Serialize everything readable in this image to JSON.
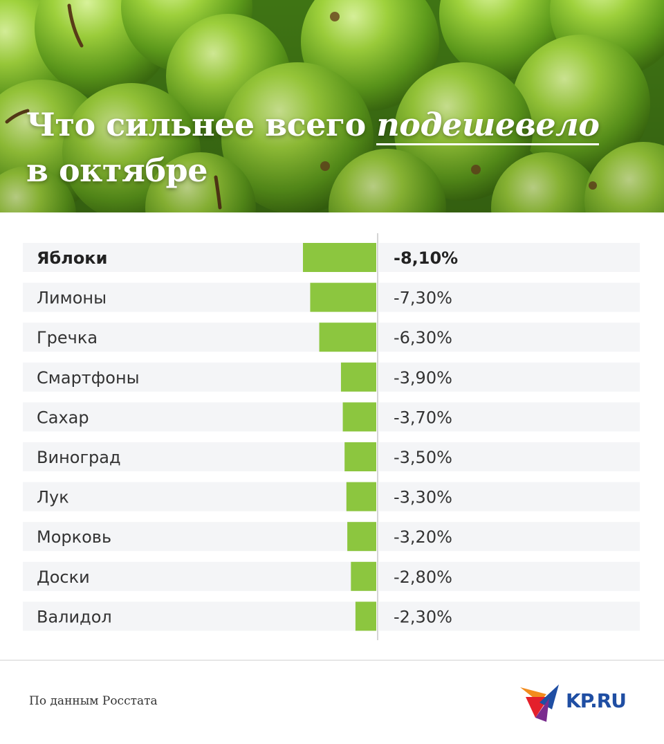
{
  "header": {
    "title_prefix": "Что сильнее всего ",
    "title_accent": "подешевело",
    "title_line2": "в октябре"
  },
  "chart_data": {
    "type": "bar",
    "orientation": "horizontal",
    "categories": [
      "Яблоки",
      "Лимоны",
      "Гречка",
      "Смартфоны",
      "Сахар",
      "Виноград",
      "Лук",
      "Морковь",
      "Доски",
      "Валидол"
    ],
    "values": [
      -8.1,
      -7.3,
      -6.3,
      -3.9,
      -3.7,
      -3.5,
      -3.3,
      -3.2,
      -2.8,
      -2.3
    ],
    "value_labels": [
      "-8,10%",
      "-7,30%",
      "-6,30%",
      "-3,90%",
      "-3,70%",
      "-3,50%",
      "-3,30%",
      "-3,20%",
      "-2,80%",
      "-2,30%"
    ],
    "unit": "%",
    "highlight_index": 0,
    "bar_color": "#8cc63f",
    "row_bg_color": "#f4f5f7"
  },
  "footer": {
    "source": "По данным Росстата",
    "logo_text": "KP.RU"
  },
  "colors": {
    "logo_blue": "#1f4ea3",
    "logo_red": "#e4202b",
    "logo_orange": "#f28c1e"
  }
}
